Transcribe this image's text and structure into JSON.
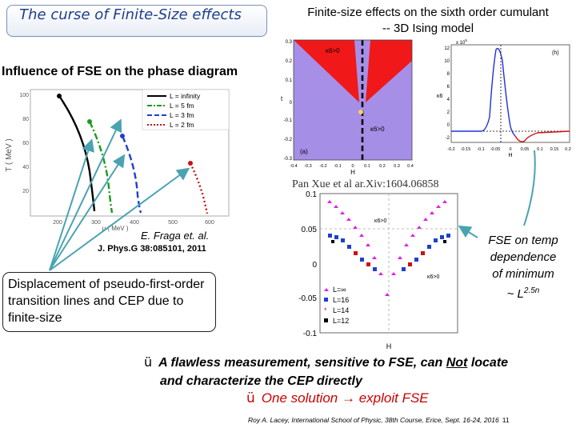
{
  "title": "The curse of Finite-Size effects",
  "heading_right_line1": "Finite-size effects on the sixth order cumulant",
  "heading_right_line2": "-- 3D Ising model",
  "heading_left": "Influence of FSE on the phase diagram",
  "left_plot": {
    "y_axis_label": "T ( MeV )",
    "x_axis_label": "μ ( MeV )",
    "y_ticks": [
      "100",
      "80",
      "60",
      "40",
      "20"
    ],
    "x_ticks": [
      "200",
      "300",
      "400",
      "500",
      "600"
    ],
    "legend": [
      "L = infinity",
      "L = 5 fm",
      "L = 3 fm",
      "L = 2 fm"
    ],
    "colors": [
      "#000000",
      "#1a9a1a",
      "#1f3fd0",
      "#cc1111"
    ]
  },
  "phase_plot": {
    "panel_label": "(a)",
    "y_axis_label": "t",
    "x_axis_label": "H",
    "upper_region_label": "κ6>0",
    "lower_region_label": "κ6>0",
    "y_ticks": [
      "0.3",
      "0.2",
      "0.1",
      "0",
      "-0.1",
      "-0.2",
      "-0.3"
    ],
    "x_ticks": [
      "-0.4",
      "-0.3",
      "-0.2",
      "-0.1",
      "0",
      "0.1",
      "0.2",
      "0.3",
      "0.4"
    ]
  },
  "curve_plot": {
    "panel_label": "(h)",
    "y_axis_label": "κ6",
    "x_axis_label": "H",
    "exponent": "x 10",
    "exponent_power": "5",
    "y_ticks": [
      "12",
      "10",
      "8",
      "6",
      "4",
      "2",
      "0",
      "-2"
    ],
    "x_ticks": [
      "-0.2",
      "-0.15",
      "-0.1",
      "-0.05",
      "0",
      "0.05",
      "0.1",
      "0.15",
      "0.2"
    ]
  },
  "citation": "Pan Xue et al ar.Xiv:1604.06858",
  "scan_plot": {
    "y_ticks": [
      "0.1",
      "0.05",
      "0",
      "-0.05",
      "-0.1"
    ],
    "x_axis_label": "H",
    "kappa_upper": "κ6>0",
    "kappa_lower": "κ6>0",
    "legend": [
      "L=∞",
      "L=16",
      "L=14",
      "L=12"
    ]
  },
  "fraga": "E. Fraga et. al.",
  "jphys": "J. Phys.G 38:085101, 2011",
  "callout": "Displacement of pseudo-first-order transition lines and CEP due to finite-size",
  "fse_line1": "FSE on temp",
  "fse_line2": "dependence",
  "fse_line3": "of minimum",
  "fse_line4": "~ L",
  "fse_exp": "2.5n",
  "meas_check": "ü",
  "meas_part1": "A flawless measurement, sensitive to FSE, can",
  "meas_not": "Not",
  "meas_part2": "locate",
  "meas_line2": "and characterize the CEP directly",
  "solution_check": "ü",
  "solution_part1": "One solution",
  "solution_arrow": "→",
  "solution_part2": "exploit FSE",
  "footer": "Roy A. Lacey, International School of Physic, 38th Course, Erice, Sept. 16-24, 2016",
  "page_number": "11"
}
